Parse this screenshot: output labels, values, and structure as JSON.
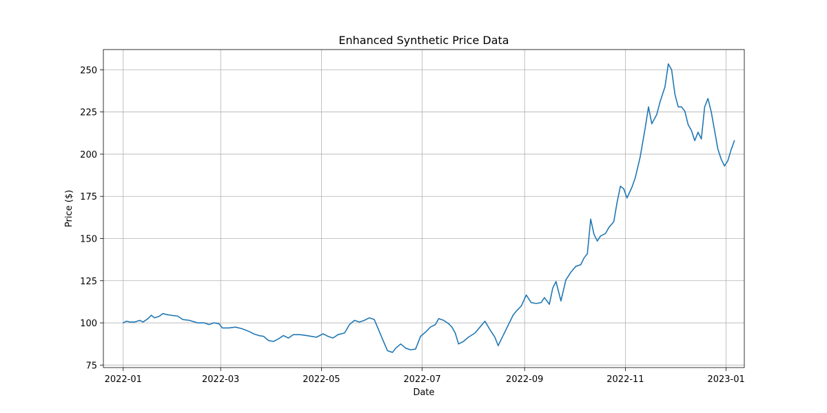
{
  "chart_data": {
    "type": "line",
    "title": "Enhanced Synthetic Price Data",
    "xlabel": "Date",
    "ylabel": "Price ($)",
    "x_axis_type": "date",
    "xlim": [
      "2021-12-20",
      "2023-01-12"
    ],
    "ylim": [
      73.5,
      262
    ],
    "grid": true,
    "x_ticks": [
      {
        "date": "2022-01-01",
        "label": "2022-01"
      },
      {
        "date": "2022-03-01",
        "label": "2022-03"
      },
      {
        "date": "2022-05-01",
        "label": "2022-05"
      },
      {
        "date": "2022-07-01",
        "label": "2022-07"
      },
      {
        "date": "2022-09-01",
        "label": "2022-09"
      },
      {
        "date": "2022-11-01",
        "label": "2022-11"
      },
      {
        "date": "2023-01-01",
        "label": "2023-01"
      }
    ],
    "y_ticks": [
      75,
      100,
      125,
      150,
      175,
      200,
      225,
      250
    ],
    "series": [
      {
        "color": "#1f77b4",
        "points": [
          [
            "2022-01-01",
            100
          ],
          [
            "2022-01-03",
            101
          ],
          [
            "2022-01-05",
            100.5
          ],
          [
            "2022-01-08",
            100.5
          ],
          [
            "2022-01-11",
            101.5
          ],
          [
            "2022-01-13",
            100.5
          ],
          [
            "2022-01-16",
            102.5
          ],
          [
            "2022-01-18",
            104.5
          ],
          [
            "2022-01-20",
            103
          ],
          [
            "2022-01-23",
            104
          ],
          [
            "2022-01-25",
            105.5
          ],
          [
            "2022-01-27",
            105
          ],
          [
            "2022-01-30",
            104.5
          ],
          [
            "2022-02-03",
            104
          ],
          [
            "2022-02-06",
            102
          ],
          [
            "2022-02-10",
            101.5
          ],
          [
            "2022-02-15",
            100
          ],
          [
            "2022-02-19",
            100
          ],
          [
            "2022-02-22",
            99
          ],
          [
            "2022-02-25",
            100
          ],
          [
            "2022-02-28",
            99.5
          ],
          [
            "2022-03-02",
            97
          ],
          [
            "2022-03-06",
            97
          ],
          [
            "2022-03-10",
            97.5
          ],
          [
            "2022-03-14",
            96.5
          ],
          [
            "2022-03-18",
            95
          ],
          [
            "2022-03-21",
            93.5
          ],
          [
            "2022-03-24",
            92.5
          ],
          [
            "2022-03-27",
            92
          ],
          [
            "2022-03-30",
            89.5
          ],
          [
            "2022-04-02",
            89
          ],
          [
            "2022-04-05",
            90.5
          ],
          [
            "2022-04-08",
            92.5
          ],
          [
            "2022-04-11",
            91
          ],
          [
            "2022-04-14",
            93
          ],
          [
            "2022-04-18",
            93
          ],
          [
            "2022-04-22",
            92.5
          ],
          [
            "2022-04-25",
            92
          ],
          [
            "2022-04-28",
            91.5
          ],
          [
            "2022-05-02",
            93.5
          ],
          [
            "2022-05-05",
            92
          ],
          [
            "2022-05-08",
            91
          ],
          [
            "2022-05-11",
            93
          ],
          [
            "2022-05-15",
            94
          ],
          [
            "2022-05-18",
            99
          ],
          [
            "2022-05-21",
            101.5
          ],
          [
            "2022-05-24",
            100.5
          ],
          [
            "2022-05-27",
            101.5
          ],
          [
            "2022-05-30",
            103
          ],
          [
            "2022-06-02",
            102
          ],
          [
            "2022-06-05",
            95
          ],
          [
            "2022-06-08",
            88
          ],
          [
            "2022-06-10",
            83.5
          ],
          [
            "2022-06-13",
            82.5
          ],
          [
            "2022-06-15",
            85
          ],
          [
            "2022-06-18",
            87.5
          ],
          [
            "2022-06-21",
            85
          ],
          [
            "2022-06-24",
            84
          ],
          [
            "2022-06-27",
            84.5
          ],
          [
            "2022-06-30",
            92
          ],
          [
            "2022-07-03",
            94.5
          ],
          [
            "2022-07-06",
            97.5
          ],
          [
            "2022-07-09",
            99
          ],
          [
            "2022-07-11",
            102.5
          ],
          [
            "2022-07-14",
            101.5
          ],
          [
            "2022-07-17",
            99.5
          ],
          [
            "2022-07-19",
            97.5
          ],
          [
            "2022-07-21",
            94
          ],
          [
            "2022-07-23",
            87.5
          ],
          [
            "2022-07-26",
            89
          ],
          [
            "2022-07-29",
            91.5
          ],
          [
            "2022-08-02",
            94
          ],
          [
            "2022-08-05",
            97.5
          ],
          [
            "2022-08-08",
            101
          ],
          [
            "2022-08-11",
            96
          ],
          [
            "2022-08-14",
            91.5
          ],
          [
            "2022-08-16",
            86.5
          ],
          [
            "2022-08-19",
            92.5
          ],
          [
            "2022-08-22",
            98.5
          ],
          [
            "2022-08-25",
            104.5
          ],
          [
            "2022-08-27",
            107
          ],
          [
            "2022-08-30",
            110
          ],
          [
            "2022-09-02",
            116.5
          ],
          [
            "2022-09-05",
            112
          ],
          [
            "2022-09-08",
            111.5
          ],
          [
            "2022-09-11",
            112
          ],
          [
            "2022-09-13",
            115
          ],
          [
            "2022-09-16",
            111
          ],
          [
            "2022-09-18",
            120.5
          ],
          [
            "2022-09-20",
            124.5
          ],
          [
            "2022-09-23",
            113
          ],
          [
            "2022-09-26",
            125.5
          ],
          [
            "2022-09-29",
            130
          ],
          [
            "2022-10-02",
            133.5
          ],
          [
            "2022-10-05",
            134.5
          ],
          [
            "2022-10-07",
            138.5
          ],
          [
            "2022-10-09",
            141
          ],
          [
            "2022-10-11",
            161.5
          ],
          [
            "2022-10-13",
            152.5
          ],
          [
            "2022-10-15",
            148.5
          ],
          [
            "2022-10-17",
            151.5
          ],
          [
            "2022-10-20",
            153
          ],
          [
            "2022-10-22",
            156.5
          ],
          [
            "2022-10-25",
            160
          ],
          [
            "2022-10-27",
            171.5
          ],
          [
            "2022-10-29",
            181
          ],
          [
            "2022-10-31",
            179.5
          ],
          [
            "2022-11-02",
            174
          ],
          [
            "2022-11-05",
            180.5
          ],
          [
            "2022-11-07",
            186
          ],
          [
            "2022-11-10",
            198.5
          ],
          [
            "2022-11-13",
            215.5
          ],
          [
            "2022-11-15",
            228
          ],
          [
            "2022-11-17",
            218
          ],
          [
            "2022-11-20",
            223.5
          ],
          [
            "2022-11-22",
            231
          ],
          [
            "2022-11-25",
            240
          ],
          [
            "2022-11-27",
            253.5
          ],
          [
            "2022-11-29",
            250
          ],
          [
            "2022-12-01",
            235.5
          ],
          [
            "2022-12-03",
            228
          ],
          [
            "2022-12-05",
            228
          ],
          [
            "2022-12-07",
            225.5
          ],
          [
            "2022-12-09",
            217.5
          ],
          [
            "2022-12-11",
            214
          ],
          [
            "2022-12-13",
            208
          ],
          [
            "2022-12-15",
            213
          ],
          [
            "2022-12-17",
            209
          ],
          [
            "2022-12-19",
            228
          ],
          [
            "2022-12-21",
            233
          ],
          [
            "2022-12-23",
            225
          ],
          [
            "2022-12-25",
            214
          ],
          [
            "2022-12-27",
            203
          ],
          [
            "2022-12-29",
            197
          ],
          [
            "2022-12-31",
            193
          ],
          [
            "2023-01-02",
            196
          ],
          [
            "2023-01-04",
            202.5
          ],
          [
            "2023-01-06",
            208
          ]
        ]
      }
    ]
  }
}
